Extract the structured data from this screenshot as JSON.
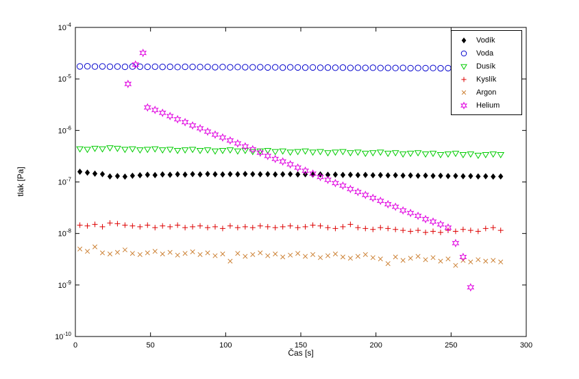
{
  "chart_data": {
    "type": "scatter",
    "title": "",
    "xlabel": "Čas [s]",
    "ylabel": "tlak [Pa]",
    "xlim": [
      0,
      300
    ],
    "x_ticks": [
      0,
      50,
      100,
      150,
      200,
      250,
      300
    ],
    "y_scale": "log",
    "ylim_log10": [
      -10,
      -4
    ],
    "y_tick_exponents": [
      -10,
      -9,
      -8,
      -7,
      -6,
      -5,
      -4
    ],
    "grid": false,
    "legend_position": "top-right",
    "series": [
      {
        "name": "Vodík",
        "marker": "diamond",
        "filled": true,
        "color": "#000000",
        "x": [
          3,
          8,
          13,
          18,
          23,
          28,
          33,
          38,
          43,
          48,
          53,
          58,
          63,
          68,
          73,
          78,
          83,
          88,
          93,
          98,
          103,
          108,
          113,
          118,
          123,
          128,
          133,
          138,
          143,
          148,
          153,
          158,
          163,
          168,
          173,
          178,
          183,
          188,
          193,
          198,
          203,
          208,
          213,
          218,
          223,
          228,
          233,
          238,
          243,
          248,
          253,
          258,
          263,
          268,
          273,
          278,
          283
        ],
        "y": [
          1.58e-07,
          1.52e-07,
          1.45e-07,
          1.42e-07,
          1.28e-07,
          1.3e-07,
          1.27e-07,
          1.32e-07,
          1.35e-07,
          1.38e-07,
          1.36e-07,
          1.4e-07,
          1.38e-07,
          1.41e-07,
          1.39e-07,
          1.42e-07,
          1.4e-07,
          1.43e-07,
          1.41e-07,
          1.4e-07,
          1.42e-07,
          1.41e-07,
          1.43e-07,
          1.42e-07,
          1.41e-07,
          1.42e-07,
          1.4e-07,
          1.41e-07,
          1.42e-07,
          1.4e-07,
          1.41e-07,
          1.39e-07,
          1.4e-07,
          1.38e-07,
          1.39e-07,
          1.37e-07,
          1.38e-07,
          1.36e-07,
          1.37e-07,
          1.35e-07,
          1.36e-07,
          1.34e-07,
          1.35e-07,
          1.33e-07,
          1.34e-07,
          1.32e-07,
          1.33e-07,
          1.31e-07,
          1.32e-07,
          1.3e-07,
          1.31e-07,
          1.29e-07,
          1.3e-07,
          1.28e-07,
          1.29e-07,
          1.27e-07,
          1.28e-07
        ]
      },
      {
        "name": "Voda",
        "marker": "circle",
        "filled": false,
        "color": "#0000cc",
        "x": [
          3,
          8,
          13,
          18,
          23,
          28,
          33,
          38,
          43,
          48,
          53,
          58,
          63,
          68,
          73,
          78,
          83,
          88,
          93,
          98,
          103,
          108,
          113,
          118,
          123,
          128,
          133,
          138,
          143,
          148,
          153,
          158,
          163,
          168,
          173,
          178,
          183,
          188,
          193,
          198,
          203,
          208,
          213,
          218,
          223,
          228,
          233,
          238,
          243,
          248,
          253,
          258,
          263,
          268,
          273,
          278,
          283
        ],
        "y": [
          1.75e-05,
          1.76e-05,
          1.74e-05,
          1.75e-05,
          1.73e-05,
          1.74e-05,
          1.72e-05,
          1.74e-05,
          1.73e-05,
          1.72e-05,
          1.73e-05,
          1.71e-05,
          1.72e-05,
          1.7e-05,
          1.72e-05,
          1.71e-05,
          1.7e-05,
          1.71e-05,
          1.69e-05,
          1.7e-05,
          1.68e-05,
          1.7e-05,
          1.69e-05,
          1.68e-05,
          1.69e-05,
          1.67e-05,
          1.68e-05,
          1.66e-05,
          1.68e-05,
          1.67e-05,
          1.66e-05,
          1.67e-05,
          1.65e-05,
          1.66e-05,
          1.65e-05,
          1.66e-05,
          1.64e-05,
          1.65e-05,
          1.64e-05,
          1.65e-05,
          1.63e-05,
          1.64e-05,
          1.63e-05,
          1.64e-05,
          1.62e-05,
          1.63e-05,
          1.62e-05,
          1.63e-05,
          1.61e-05,
          1.62e-05,
          1.61e-05,
          1.62e-05,
          1.6e-05,
          1.61e-05,
          1.6e-05,
          1.61e-05,
          1.6e-05
        ]
      },
      {
        "name": "Dusík",
        "marker": "triangle-down",
        "filled": false,
        "color": "#00cc00",
        "x": [
          3,
          8,
          13,
          18,
          23,
          28,
          33,
          38,
          43,
          48,
          53,
          58,
          63,
          68,
          73,
          78,
          83,
          88,
          93,
          98,
          103,
          108,
          113,
          118,
          123,
          128,
          133,
          138,
          143,
          148,
          153,
          158,
          163,
          168,
          173,
          178,
          183,
          188,
          193,
          198,
          203,
          208,
          213,
          218,
          223,
          228,
          233,
          238,
          243,
          248,
          253,
          258,
          263,
          268,
          273,
          278,
          283
        ],
        "y": [
          4.4e-07,
          4.3e-07,
          4.5e-07,
          4.4e-07,
          4.6e-07,
          4.5e-07,
          4.3e-07,
          4.4e-07,
          4.2e-07,
          4.3e-07,
          4.4e-07,
          4.2e-07,
          4.3e-07,
          4.1e-07,
          4.2e-07,
          4.3e-07,
          4.1e-07,
          4.2e-07,
          4e-07,
          4.1e-07,
          4.2e-07,
          4e-07,
          4.1e-07,
          3.9e-07,
          4e-07,
          4.1e-07,
          3.9e-07,
          4e-07,
          3.8e-07,
          3.9e-07,
          4e-07,
          3.8e-07,
          3.9e-07,
          3.7e-07,
          3.8e-07,
          3.9e-07,
          3.7e-07,
          3.8e-07,
          3.6e-07,
          3.7e-07,
          3.8e-07,
          3.6e-07,
          3.7e-07,
          3.5e-07,
          3.6e-07,
          3.7e-07,
          3.5e-07,
          3.6e-07,
          3.4e-07,
          3.5e-07,
          3.6e-07,
          3.4e-07,
          3.5e-07,
          3.3e-07,
          3.4e-07,
          3.5e-07,
          3.4e-07
        ]
      },
      {
        "name": "Kyslík",
        "marker": "plus",
        "filled": false,
        "color": "#dd0000",
        "x": [
          3,
          8,
          13,
          18,
          23,
          28,
          33,
          38,
          43,
          48,
          53,
          58,
          63,
          68,
          73,
          78,
          83,
          88,
          93,
          98,
          103,
          108,
          113,
          118,
          123,
          128,
          133,
          138,
          143,
          148,
          153,
          158,
          163,
          168,
          173,
          178,
          183,
          188,
          193,
          198,
          203,
          208,
          213,
          218,
          223,
          228,
          233,
          238,
          243,
          248,
          253,
          258,
          263,
          268,
          273,
          278,
          283
        ],
        "y": [
          1.45e-08,
          1.4e-08,
          1.5e-08,
          1.35e-08,
          1.6e-08,
          1.55e-08,
          1.45e-08,
          1.4e-08,
          1.35e-08,
          1.45e-08,
          1.3e-08,
          1.4e-08,
          1.35e-08,
          1.45e-08,
          1.3e-08,
          1.35e-08,
          1.4e-08,
          1.3e-08,
          1.35e-08,
          1.25e-08,
          1.4e-08,
          1.3e-08,
          1.35e-08,
          1.3e-08,
          1.4e-08,
          1.35e-08,
          1.3e-08,
          1.35e-08,
          1.4e-08,
          1.3e-08,
          1.35e-08,
          1.45e-08,
          1.4e-08,
          1.3e-08,
          1.25e-08,
          1.35e-08,
          1.5e-08,
          1.3e-08,
          1.25e-08,
          1.2e-08,
          1.3e-08,
          1.25e-08,
          1.2e-08,
          1.15e-08,
          1.1e-08,
          1.15e-08,
          1.05e-08,
          1.1e-08,
          1.05e-08,
          1.15e-08,
          1.1e-08,
          1.2e-08,
          1.15e-08,
          1.1e-08,
          1.25e-08,
          1.3e-08,
          1.15e-08
        ]
      },
      {
        "name": "Argon",
        "marker": "x",
        "filled": false,
        "color": "#cc8033",
        "x": [
          3,
          8,
          13,
          18,
          23,
          28,
          33,
          38,
          43,
          48,
          53,
          58,
          63,
          68,
          73,
          78,
          83,
          88,
          93,
          98,
          103,
          108,
          113,
          118,
          123,
          128,
          133,
          138,
          143,
          148,
          153,
          158,
          163,
          168,
          173,
          178,
          183,
          188,
          193,
          198,
          203,
          208,
          213,
          218,
          223,
          228,
          233,
          238,
          243,
          248,
          253,
          258,
          263,
          268,
          273,
          278,
          283
        ],
        "y": [
          5e-09,
          4.5e-09,
          5.5e-09,
          4.2e-09,
          4e-09,
          4.3e-09,
          4.8e-09,
          4.1e-09,
          3.9e-09,
          4.2e-09,
          4.5e-09,
          4e-09,
          4.3e-09,
          3.8e-09,
          4.1e-09,
          4.4e-09,
          3.9e-09,
          4.2e-09,
          3.7e-09,
          4e-09,
          2.9e-09,
          4.1e-09,
          3.6e-09,
          3.9e-09,
          4.2e-09,
          3.7e-09,
          4e-09,
          3.5e-09,
          3.8e-09,
          4.1e-09,
          3.6e-09,
          3.9e-09,
          3.4e-09,
          3.7e-09,
          4e-09,
          3.5e-09,
          3.3e-09,
          3.6e-09,
          3.9e-09,
          3.4e-09,
          3.2e-09,
          2.6e-09,
          3.5e-09,
          3e-09,
          3.3e-09,
          3.6e-09,
          3.1e-09,
          3.4e-09,
          2.9e-09,
          3.2e-09,
          2.4e-09,
          3e-09,
          2.8e-09,
          3.1e-09,
          2.9e-09,
          3e-09,
          2.8e-09
        ]
      },
      {
        "name": "Helium",
        "marker": "hexagram",
        "filled": false,
        "color": "#e000e0",
        "x": [
          35,
          40,
          45,
          48,
          53,
          58,
          63,
          68,
          73,
          78,
          83,
          88,
          93,
          98,
          103,
          108,
          113,
          118,
          123,
          128,
          133,
          138,
          143,
          148,
          153,
          158,
          163,
          168,
          173,
          178,
          183,
          188,
          193,
          198,
          203,
          208,
          213,
          218,
          223,
          228,
          233,
          238,
          243,
          248,
          253,
          258,
          263
        ],
        "y": [
          8e-06,
          1.9e-05,
          3.2e-05,
          2.8e-06,
          2.5e-06,
          2.2e-06,
          1.9e-06,
          1.65e-06,
          1.45e-06,
          1.25e-06,
          1.1e-06,
          9.5e-07,
          8.3e-07,
          7.3e-07,
          6.4e-07,
          5.6e-07,
          4.9e-07,
          4.3e-07,
          3.7e-07,
          3.2e-07,
          2.8e-07,
          2.5e-07,
          2.2e-07,
          1.9e-07,
          1.65e-07,
          1.45e-07,
          1.25e-07,
          1.1e-07,
          9.5e-08,
          8.5e-08,
          7.3e-08,
          6.4e-08,
          5.6e-08,
          4.9e-08,
          4.3e-08,
          3.7e-08,
          3.3e-08,
          2.8e-08,
          2.5e-08,
          2.2e-08,
          1.9e-08,
          1.7e-08,
          1.5e-08,
          1.3e-08,
          6.5e-09,
          3.5e-09,
          9e-10
        ]
      }
    ]
  }
}
